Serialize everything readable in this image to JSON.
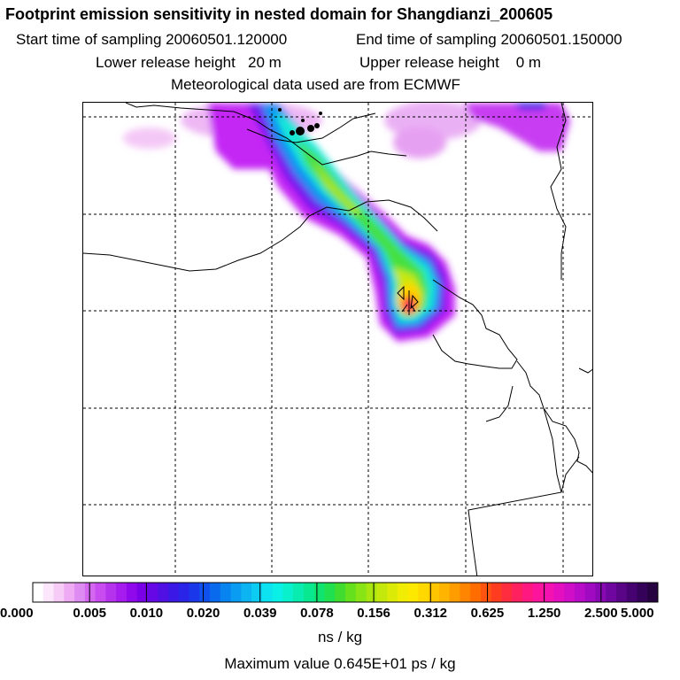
{
  "header": {
    "title": "Footprint emission sensitivity in nested domain for Shangdianzi_200605",
    "start_time": "Start time of sampling 20060501.120000",
    "end_time": "End time of sampling 20060501.150000",
    "lower_height": "Lower release height   20 m",
    "upper_height": "Upper release height    0 m",
    "met_data": "Meteorological data used are from ECMWF"
  },
  "colorbar": {
    "ticks": [
      "0.000",
      "0.005",
      "0.010",
      "0.020",
      "0.039",
      "0.078",
      "0.156",
      "0.312",
      "0.625",
      "1.250",
      "2.500",
      "5.000"
    ],
    "colors": [
      "#ffffff",
      "#fbe6fb",
      "#f6ccf6",
      "#eeaaf2",
      "#de8cf2",
      "#d466f0",
      "#c84cf0",
      "#b633ee",
      "#a61cee",
      "#9008ec",
      "#7a00e8",
      "#6608e6",
      "#5010e4",
      "#3c18e6",
      "#2a24e8",
      "#1a38ea",
      "#1050ec",
      "#0a6aee",
      "#0884f0",
      "#0a9cf2",
      "#0cb4f2",
      "#0cccf2",
      "#0ce2f0",
      "#0af0e6",
      "#08f0cc",
      "#08ecb0",
      "#08e890",
      "#10e470",
      "#20e050",
      "#40dc30",
      "#64e01c",
      "#88e414",
      "#a8e610",
      "#c4e80c",
      "#dcea08",
      "#f0ec04",
      "#fde800",
      "#ffd800",
      "#ffc600",
      "#ffb400",
      "#ff9c00",
      "#ff8400",
      "#ff6c00",
      "#ff5410",
      "#ff3c20",
      "#ff2c40",
      "#ff2060",
      "#ff1880",
      "#fc149c",
      "#f412b0",
      "#e410c0",
      "#d00ec8",
      "#b80cc8",
      "#a00ac0",
      "#8808b4",
      "#7006a0",
      "#5a0488",
      "#460270",
      "#340258",
      "#260240"
    ],
    "unit": "ns / kg",
    "max_value": "Maximum value  0.645E+01 ps / kg"
  },
  "map": {
    "receptor": "Shangdianzi",
    "receptor_marker": "triangle-marker",
    "plume_levels": [
      {
        "level": "0.005",
        "color": "#f0b4f4"
      },
      {
        "level": "0.010",
        "color": "#c020f4"
      },
      {
        "level": "0.020",
        "color": "#6a10ee"
      },
      {
        "level": "0.039",
        "color": "#0c8cf2"
      },
      {
        "level": "0.078",
        "color": "#10e8d8"
      },
      {
        "level": "0.156",
        "color": "#40e040"
      },
      {
        "level": "0.312",
        "color": "#c8e80c"
      },
      {
        "level": "0.625",
        "color": "#ffd400"
      },
      {
        "level": "1.250",
        "color": "#ff6a00"
      },
      {
        "level": "2.500",
        "color": "#ff1a70"
      },
      {
        "level": "5.000",
        "color": "#8a0aa0"
      }
    ]
  }
}
